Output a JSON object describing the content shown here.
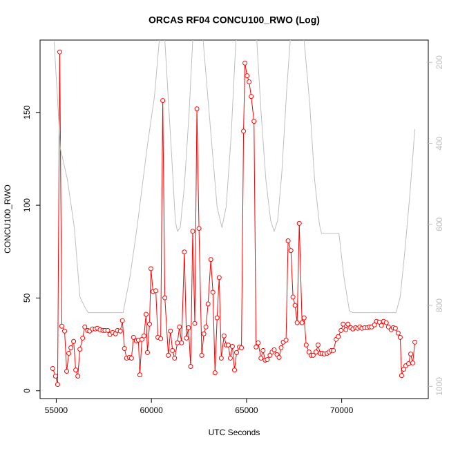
{
  "chart_data": {
    "type": "line",
    "title": "ORCAS RF04 CONCU100_RWO (Log)",
    "x_label": "UTC Seconds",
    "y_label": "CONCU100_RWO",
    "xlim": [
      54150,
      74550
    ],
    "xticks": [
      55000,
      60000,
      65000,
      70000
    ],
    "ylim": [
      -4.2,
      189
    ],
    "yticks": [
      0,
      50,
      100,
      150
    ],
    "y2lim": [
      1030,
      145
    ],
    "y2ticks": [
      200,
      400,
      600,
      800,
      1000
    ],
    "series": [
      {
        "color": "#ff0000",
        "markers": true,
        "x": [
          54817,
          54963,
          55073,
          55183,
          55293,
          55439,
          55549,
          55659,
          55768,
          55915,
          56024,
          56134,
          56244,
          56390,
          56500,
          56647,
          56756,
          56903,
          57049,
          57159,
          57305,
          57452,
          57561,
          57708,
          57817,
          57964,
          58110,
          58220,
          58366,
          58476,
          58586,
          58696,
          58842,
          58952,
          59061,
          59208,
          59318,
          59391,
          59501,
          59610,
          59720,
          59793,
          59903,
          59976,
          60086,
          60232,
          60342,
          60489,
          60598,
          60708,
          60891,
          61001,
          61111,
          61220,
          61367,
          61476,
          61586,
          61733,
          61842,
          61952,
          62062,
          62172,
          62281,
          62391,
          62501,
          62647,
          62757,
          62867,
          62977,
          63123,
          63233,
          63343,
          63452,
          63562,
          63672,
          63818,
          63928,
          64038,
          64148,
          64257,
          64367,
          64477,
          64623,
          64733,
          64843,
          64916,
          65026,
          65135,
          65245,
          65392,
          65501,
          65611,
          65757,
          65867,
          65977,
          66087,
          66233,
          66343,
          66453,
          66599,
          66709,
          66818,
          66928,
          67075,
          67184,
          67331,
          67441,
          67550,
          67660,
          67770,
          67916,
          68026,
          68136,
          68282,
          68392,
          68502,
          68648,
          68758,
          68867,
          68977,
          69087,
          69234,
          69343,
          69453,
          69563,
          69709,
          69819,
          69965,
          70075,
          70221,
          70331,
          70477,
          70587,
          70734,
          70843,
          70953,
          71063,
          71209,
          71356,
          71466,
          71575,
          71722,
          71831,
          71978,
          72088,
          72197,
          72344,
          72454,
          72600,
          72710,
          72820,
          72966,
          73076,
          73149,
          73259,
          73368,
          73515,
          73625,
          73734,
          73844
        ],
        "values": [
          12.0,
          7.9,
          3.4,
          182.6,
          34.8,
          32.2,
          10.5,
          20.2,
          23.2,
          26.6,
          11.2,
          7.9,
          22.4,
          28.4,
          34.4,
          32.5,
          32.2,
          33.3,
          33.3,
          33.7,
          32.9,
          32.5,
          32.5,
          32.5,
          30.3,
          31.4,
          30.7,
          32.5,
          32.2,
          37.8,
          22.8,
          17.6,
          18.0,
          17.6,
          28.8,
          26.9,
          27.3,
          8.6,
          27.7,
          29.6,
          41.2,
          20.6,
          35.9,
          65.8,
          53.5,
          53.9,
          28.8,
          28.1,
          156.4,
          50.1,
          19.1,
          32.2,
          21.7,
          17.6,
          25.8,
          34.4,
          25.8,
          74.8,
          28.4,
          34.0,
          13.1,
          86.0,
          36.3,
          151.9,
          87.5,
          19.1,
          30.7,
          34.4,
          46.8,
          70.7,
          53.1,
          9.7,
          39.3,
          61.0,
          17.6,
          29.6,
          24.7,
          24.7,
          17.6,
          23.9,
          11.2,
          20.6,
          23.6,
          23.2,
          139.9,
          176.6,
          169.8,
          166.5,
          158.6,
          145.2,
          23.6,
          25.8,
          17.6,
          21.7,
          16.5,
          16.8,
          19.1,
          20.9,
          22.1,
          19.5,
          18.0,
          23.2,
          26.2,
          27.3,
          80.8,
          75.6,
          50.5,
          46.0,
          36.7,
          90.2,
          36.7,
          39.3,
          24.7,
          20.9,
          19.1,
          19.1,
          20.9,
          24.7,
          20.2,
          20.2,
          19.8,
          20.2,
          20.9,
          21.7,
          21.7,
          27.7,
          29.2,
          32.5,
          35.9,
          32.9,
          35.9,
          34.0,
          33.3,
          34.0,
          33.7,
          34.4,
          33.7,
          34.0,
          34.0,
          34.4,
          34.4,
          35.5,
          37.4,
          37.0,
          35.2,
          37.4,
          36.7,
          34.4,
          32.9,
          34.0,
          33.7,
          31.1,
          28.8,
          8.2,
          11.6,
          13.5,
          14.6,
          19.8,
          15.0,
          26.2
        ]
      },
      {
        "color": "#bebebe",
        "axis": "y2",
        "markers": false,
        "x": [
          54890,
          55220,
          55585,
          55951,
          56244,
          56500,
          56683,
          58513,
          58879,
          59244,
          59793,
          60159,
          60415,
          60562,
          60708,
          61074,
          61257,
          61367,
          61513,
          61733,
          61989,
          62172,
          62428,
          62720,
          63086,
          63452,
          63708,
          63928,
          64184,
          64440,
          64989,
          65538,
          65757,
          66013,
          66269,
          66452,
          66635,
          66855,
          67111,
          67294,
          67660,
          68026,
          68319,
          68575,
          68831,
          68940,
          69855,
          70111,
          70404,
          70587,
          72856,
          73076,
          73332,
          73588,
          73844
        ],
        "values": [
          149,
          413,
          489,
          608,
          779,
          804,
          818,
          818,
          728,
          608,
          404,
          285,
          146,
          120,
          146,
          438,
          591,
          617,
          608,
          506,
          319,
          146,
          120,
          146,
          353,
          557,
          608,
          557,
          387,
          146,
          110,
          146,
          319,
          489,
          591,
          617,
          591,
          472,
          268,
          146,
          120,
          146,
          302,
          489,
          600,
          622,
          622,
          728,
          813,
          818,
          818,
          779,
          660,
          523,
          365
        ]
      }
    ]
  }
}
